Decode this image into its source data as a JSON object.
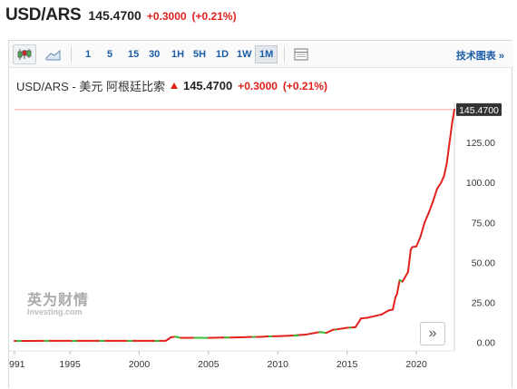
{
  "header": {
    "pair": "USD/ARS",
    "price": "145.4700",
    "change": "+0.3000",
    "change_pct": "(+0.21%)"
  },
  "toolbar": {
    "chart_type_icons": [
      "candlestick-icon",
      "area-chart-icon"
    ],
    "periods": [
      "1",
      "5",
      "15",
      "30",
      "1H",
      "5H",
      "1D",
      "1W",
      "1M"
    ],
    "active_period": "1M",
    "tech_chart_label": "技术图表 »"
  },
  "chart_title": {
    "name": "USD/ARS - 美元 阿根廷比索",
    "price": "145.4700",
    "change": "+0.3000",
    "change_pct": "(+0.21%)"
  },
  "watermark": {
    "cn": "英为财情",
    "en": "Investing.com"
  },
  "colors": {
    "up": "#e2211c",
    "down": "#3cc03c",
    "link": "#1b5da8",
    "price_tag_bg": "#333333"
  },
  "chart_data": {
    "type": "line",
    "title": "USD/ARS - 美元 阿根廷比索",
    "x_ticks": [
      "991",
      "1995",
      "2000",
      "2005",
      "2010",
      "2015",
      "2020"
    ],
    "y_ticks": [
      "0.00",
      "25.00",
      "50.00",
      "75.00",
      "100.00",
      "125.00"
    ],
    "ylim": [
      -3,
      146.5
    ],
    "xlim": [
      1991.0,
      2022.75
    ],
    "last_price_label": "145.4700",
    "last_price": 145.47,
    "series": [
      {
        "x": [
          1991.0,
          1992,
          1993,
          1994,
          1995,
          1996,
          1997,
          1998,
          1999,
          2000,
          2001,
          2001.9,
          2002.1,
          2002.3,
          2002.6,
          2003,
          2004,
          2005,
          2006,
          2007,
          2008,
          2008.8,
          2009.2,
          2010,
          2011,
          2012,
          2013,
          2013.5,
          2014.0,
          2014.5,
          2015.0,
          2015.6,
          2015.9,
          2016.0,
          2016.5,
          2017.0,
          2017.5,
          2018.0,
          2018.3,
          2018.5,
          2018.6,
          2018.8,
          2019.0,
          2019.4,
          2019.6,
          2019.7,
          2020.0,
          2020.3,
          2020.6,
          2020.9,
          2021.2,
          2021.5,
          2021.8,
          2022.0,
          2022.2,
          2022.4,
          2022.6,
          2022.75
        ],
        "y": [
          0.98,
          0.99,
          1.0,
          1.0,
          1.0,
          1.0,
          1.0,
          1.0,
          1.0,
          1.0,
          1.0,
          1.0,
          2.1,
          3.3,
          3.6,
          2.9,
          2.95,
          2.9,
          3.07,
          3.15,
          3.45,
          3.5,
          3.8,
          3.95,
          4.3,
          4.9,
          6.5,
          6.0,
          8.0,
          8.5,
          9.2,
          9.5,
          13.5,
          15.0,
          15.5,
          16.5,
          17.5,
          20.0,
          20.5,
          28.5,
          30.0,
          39.0,
          38.0,
          44.0,
          58.0,
          59.5,
          60.0,
          66.0,
          75.0,
          81.0,
          88.0,
          96.0,
          100.0,
          104.0,
          112.0,
          125.0,
          138.0,
          145.47
        ]
      }
    ]
  }
}
